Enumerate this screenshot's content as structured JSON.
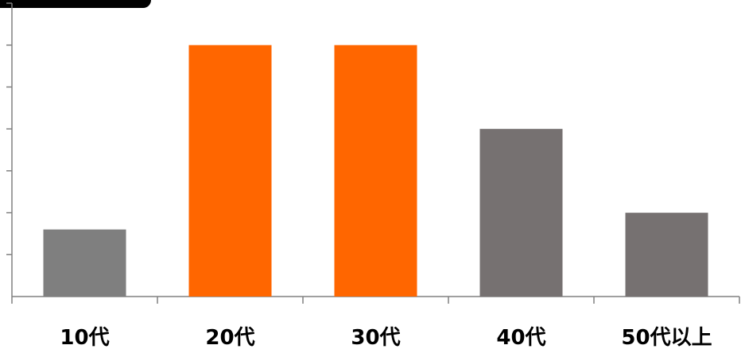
{
  "chart_data": {
    "type": "bar",
    "categories": [
      "10代",
      "20代",
      "30代",
      "40代",
      "50代以上"
    ],
    "values": [
      1.6,
      6.0,
      6.0,
      4.0,
      2.0
    ],
    "ylim": [
      0,
      7
    ],
    "y_tick_count": 7,
    "y_tick_labels_shown": false,
    "grid": false,
    "legend": "none",
    "bar_colors": [
      "#7f7f7f",
      "#ff6600",
      "#ff6600",
      "#767171",
      "#767171"
    ]
  },
  "colors": {
    "axis": "#808080",
    "header_tab": "#000000",
    "label_text": "#000000"
  }
}
